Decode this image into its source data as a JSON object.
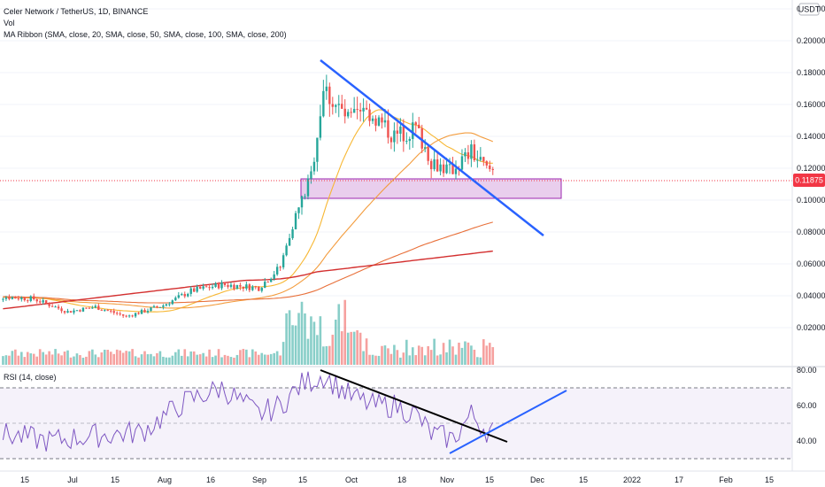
{
  "header": {
    "symbol_line": "Celer Network / TetherUS, 1D, BINANCE",
    "vol_label": "Vol",
    "ma_label": "MA Ribbon (SMA, close, 20, SMA, close, 50, SMA, close, 100, SMA, close, 200)",
    "rsi_label": "RSI (14, close)",
    "currency_badge": "USDT",
    "last_price_badge": "0.11875"
  },
  "colors": {
    "up": "#26a69a",
    "down": "#ef5350",
    "ma20": "#f7b733",
    "ma50": "#f39c3d",
    "ma100": "#e8703a",
    "ma200": "#d32f2f",
    "rsi": "#7e57c2",
    "trend_blue": "#2962ff",
    "trend_black": "#000000",
    "zone_fill": "#e1bee7",
    "zone_stroke": "#9c27b0",
    "price_badge": "#f23645"
  },
  "chart_data": [
    {
      "type": "candlestick",
      "y_ticks": [
        "0.22000",
        "0.20000",
        "0.18000",
        "0.16000",
        "0.14000",
        "0.12000",
        "0.10000",
        "0.08000",
        "0.06000",
        "0.04000",
        "0.02000"
      ],
      "ylim": [
        0.0,
        0.225
      ],
      "x_ticks": [
        "15",
        "Jul",
        "15",
        "Aug",
        "16",
        "Sep",
        "15",
        "Oct",
        "18",
        "Nov",
        "15",
        "Dec",
        "15",
        "2022",
        "17",
        "Feb",
        "15"
      ],
      "last_price": 0.11875,
      "support_zone": [
        0.1075,
        0.1195
      ],
      "ohlc_keypoints": [
        [
          "2021-06-05",
          0.04
        ],
        [
          "2021-06-20",
          0.038
        ],
        [
          "2021-07-01",
          0.03
        ],
        [
          "2021-07-10",
          0.033
        ],
        [
          "2021-07-20",
          0.027
        ],
        [
          "2021-08-01",
          0.034
        ],
        [
          "2021-08-10",
          0.043
        ],
        [
          "2021-08-20",
          0.047
        ],
        [
          "2021-09-01",
          0.045
        ],
        [
          "2021-09-08",
          0.058
        ],
        [
          "2021-09-12",
          0.085
        ],
        [
          "2021-09-18",
          0.115
        ],
        [
          "2021-09-22",
          0.17
        ],
        [
          "2021-09-30",
          0.15
        ],
        [
          "2021-10-07",
          0.155
        ],
        [
          "2021-10-15",
          0.14
        ],
        [
          "2021-10-22",
          0.145
        ],
        [
          "2021-10-27",
          0.125
        ],
        [
          "2021-11-02",
          0.118
        ],
        [
          "2021-11-09",
          0.13
        ],
        [
          "2021-11-14",
          0.119
        ]
      ],
      "moving_averages": [
        {
          "name": "SMA 20",
          "end_value": 0.135
        },
        {
          "name": "SMA 50",
          "end_value": 0.1
        },
        {
          "name": "SMA 100",
          "end_value": 0.088
        },
        {
          "name": "SMA 200",
          "end_value": 0.069
        }
      ],
      "trendlines": [
        {
          "color": "blue",
          "from": [
            "2021-09-22",
            0.196
          ],
          "to": [
            "2021-12-05",
            0.083
          ]
        }
      ]
    },
    {
      "type": "line",
      "ylim": [
        20,
        82
      ],
      "y_ticks": [
        "80.00",
        "60.00",
        "40.00"
      ],
      "bands": [
        30,
        70
      ],
      "midline": 50,
      "rsi_keypoints": [
        [
          "2021-06-05",
          45
        ],
        [
          "2021-06-25",
          40
        ],
        [
          "2021-07-10",
          43
        ],
        [
          "2021-07-25",
          45
        ],
        [
          "2021-08-08",
          62
        ],
        [
          "2021-08-20",
          70
        ],
        [
          "2021-09-01",
          55
        ],
        [
          "2021-09-08",
          60
        ],
        [
          "2021-09-15",
          72
        ],
        [
          "2021-09-22",
          77
        ],
        [
          "2021-10-01",
          65
        ],
        [
          "2021-10-08",
          60
        ],
        [
          "2021-10-15",
          60
        ],
        [
          "2021-10-22",
          55
        ],
        [
          "2021-10-27",
          44
        ],
        [
          "2021-11-03",
          41
        ],
        [
          "2021-11-09",
          55
        ],
        [
          "2021-11-14",
          46
        ]
      ],
      "trendlines": [
        {
          "color": "black",
          "from": [
            "2021-09-22",
            77
          ],
          "to": [
            "2021-11-25",
            38
          ]
        },
        {
          "color": "blue",
          "from": [
            "2021-10-31",
            30
          ],
          "to": [
            "2021-12-10",
            68
          ]
        }
      ]
    }
  ]
}
